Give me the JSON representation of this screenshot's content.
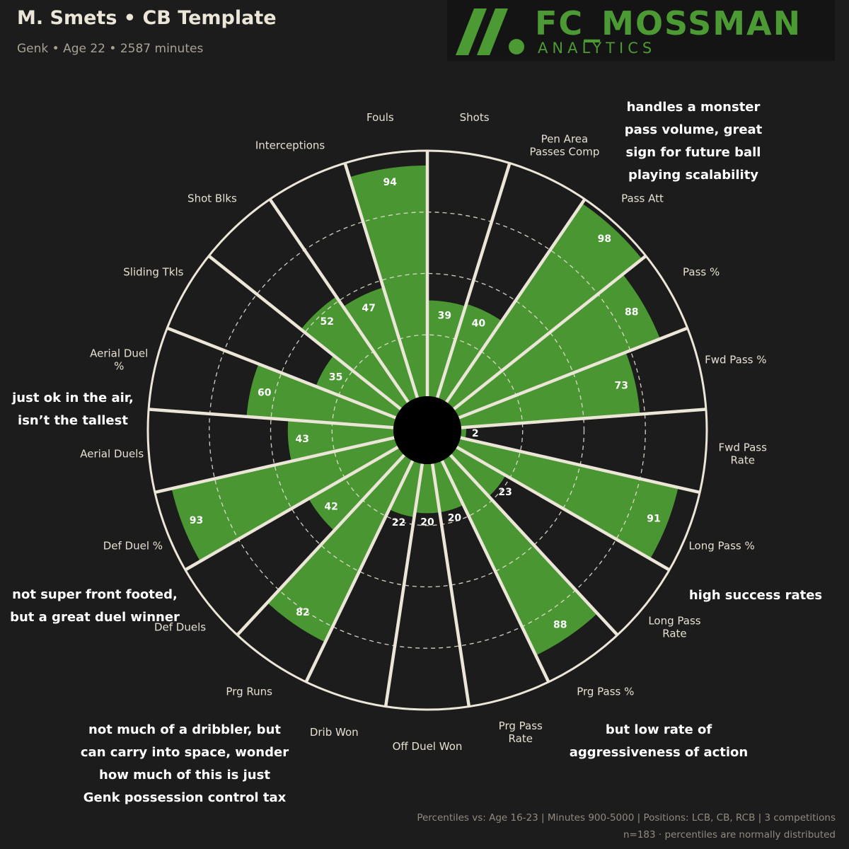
{
  "header": {
    "title": "M. Smets • CB Template",
    "subtitle": "Genk • Age 22 • 2587 minutes"
  },
  "logo": {
    "main": "FC_MOSSMAN",
    "sub": "ANALYTICS",
    "color": "#4c9a34"
  },
  "chart_data": {
    "type": "pie",
    "subtype": "radial-bar (polar percentile)",
    "scale": [
      0,
      100
    ],
    "bar_color": "#4a9632",
    "categories": [
      {
        "label": [
          "Shots"
        ],
        "value": 39
      },
      {
        "label": [
          "Pen Area",
          "Passes Comp"
        ],
        "value": 40
      },
      {
        "label": [
          "Pass Att"
        ],
        "value": 98
      },
      {
        "label": [
          "Pass %"
        ],
        "value": 88
      },
      {
        "label": [
          "Fwd Pass %"
        ],
        "value": 73
      },
      {
        "label": [
          "Fwd Pass",
          "Rate"
        ],
        "value": 2
      },
      {
        "label": [
          "Long Pass %"
        ],
        "value": 91
      },
      {
        "label": [
          "Long Pass",
          "Rate"
        ],
        "value": 23
      },
      {
        "label": [
          "Prg Pass %"
        ],
        "value": 88
      },
      {
        "label": [
          "Prg Pass",
          "Rate"
        ],
        "value": 20
      },
      {
        "label": [
          "Off Duel Won"
        ],
        "value": 20
      },
      {
        "label": [
          "Drib Won"
        ],
        "value": 22
      },
      {
        "label": [
          "Prg Runs"
        ],
        "value": 82
      },
      {
        "label": [
          "Def Duels"
        ],
        "value": 42
      },
      {
        "label": [
          "Def Duel %"
        ],
        "value": 93
      },
      {
        "label": [
          "Aerial Duels"
        ],
        "value": 43
      },
      {
        "label": [
          "Aerial Duel",
          "%"
        ],
        "value": 60
      },
      {
        "label": [
          "Sliding Tkls"
        ],
        "value": 35
      },
      {
        "label": [
          "Shot Blks"
        ],
        "value": 52
      },
      {
        "label": [
          "Interceptions"
        ],
        "value": 47
      },
      {
        "label": [
          "Fouls"
        ],
        "value": 94
      }
    ]
  },
  "annotations": [
    {
      "id": "pass-volume",
      "lines": [
        "handles a monster",
        "pass volume, great",
        "sign for future ball",
        "playing scalability"
      ]
    },
    {
      "id": "aerial",
      "lines": [
        "just ok in the air,",
        "isn’t the tallest"
      ]
    },
    {
      "id": "success-rates",
      "lines": [
        "high success rates"
      ]
    },
    {
      "id": "duels",
      "lines": [
        "not super front footed,",
        "but a great duel winner"
      ]
    },
    {
      "id": "aggressiveness",
      "lines": [
        "but low rate of",
        "aggressiveness of action"
      ]
    },
    {
      "id": "dribbler",
      "lines": [
        "not much of a dribbler, but",
        "can carry into space, wonder",
        "how much of this is just",
        "Genk possession control tax"
      ]
    }
  ],
  "footer": {
    "line1": "Percentiles vs: Age 16-23 | Minutes 900-5000 | Positions: LCB, CB, RCB | 3 competitions",
    "line2": "n=183 · percentiles are normally distributed"
  }
}
